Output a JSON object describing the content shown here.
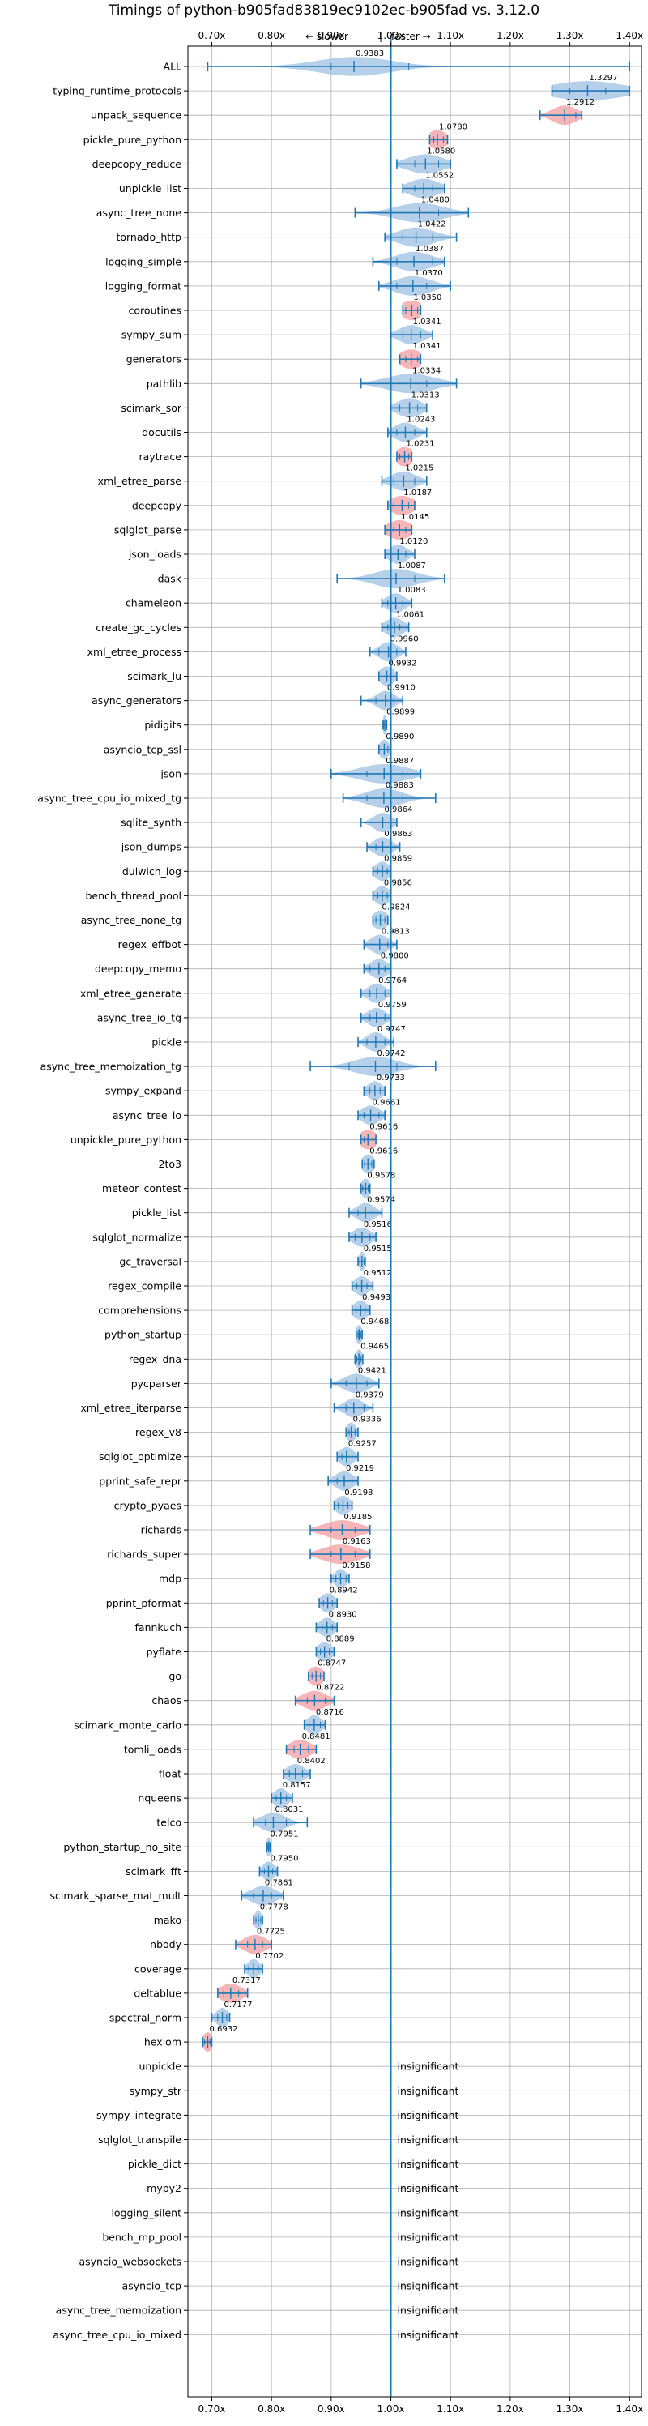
{
  "chart_data": {
    "type": "violin",
    "title": "Timings of python-b905fad83819ec9102ec-b905fad vs. 3.12.0",
    "subtitle_left": "← slower",
    "subtitle_sep": "|",
    "subtitle_right": "faster →",
    "xlabel": "",
    "ylabel": "",
    "xlim": [
      0.66,
      1.42
    ],
    "xticks": [
      0.7,
      0.8,
      0.9,
      1.0,
      1.1,
      1.2,
      1.3,
      1.4
    ],
    "xtick_labels": [
      "0.70x",
      "0.80x",
      "0.90x",
      "1.00x",
      "1.10x",
      "1.20x",
      "1.30x",
      "1.40x"
    ],
    "grid": true,
    "reference_line": 1.0,
    "insignificant_label": "insignificant",
    "colors": {
      "normal": "#aac8e6",
      "highlight": "#f5a9ad",
      "line": "#1f77b4"
    },
    "benchmarks": [
      {
        "name": "ALL",
        "mean": 0.9383,
        "min": 0.6932,
        "max": 1.3999,
        "q1": 0.9,
        "q3": 1.03,
        "spread": 0.06,
        "highlight": false
      },
      {
        "name": "typing_runtime_protocols",
        "mean": 1.3297,
        "min": 1.27,
        "max": 1.4,
        "q1": 1.3,
        "q3": 1.36,
        "spread": 0.06,
        "highlight": false
      },
      {
        "name": "unpack_sequence",
        "mean": 1.2912,
        "min": 1.25,
        "max": 1.32,
        "q1": 1.27,
        "q3": 1.31,
        "spread": 0.02,
        "highlight": true
      },
      {
        "name": "pickle_pure_python",
        "mean": 1.078,
        "min": 1.065,
        "max": 1.095,
        "q1": 1.072,
        "q3": 1.088,
        "spread": 0.015,
        "highlight": true
      },
      {
        "name": "deepcopy_reduce",
        "mean": 1.058,
        "min": 1.01,
        "max": 1.1,
        "q1": 1.04,
        "q3": 1.08,
        "spread": 0.03,
        "highlight": false
      },
      {
        "name": "unpickle_list",
        "mean": 1.0552,
        "min": 1.02,
        "max": 1.09,
        "q1": 1.04,
        "q3": 1.07,
        "spread": 0.025,
        "highlight": false
      },
      {
        "name": "async_tree_none",
        "mean": 1.048,
        "min": 0.94,
        "max": 1.13,
        "q1": 1.0,
        "q3": 1.08,
        "spread": 0.04,
        "highlight": false
      },
      {
        "name": "tornado_http",
        "mean": 1.0422,
        "min": 0.99,
        "max": 1.11,
        "q1": 1.02,
        "q3": 1.07,
        "spread": 0.03,
        "highlight": false
      },
      {
        "name": "logging_simple",
        "mean": 1.0387,
        "min": 0.97,
        "max": 1.09,
        "q1": 1.01,
        "q3": 1.07,
        "spread": 0.03,
        "highlight": false
      },
      {
        "name": "logging_format",
        "mean": 1.037,
        "min": 0.98,
        "max": 1.1,
        "q1": 1.01,
        "q3": 1.06,
        "spread": 0.03,
        "highlight": false
      },
      {
        "name": "coroutines",
        "mean": 1.035,
        "min": 1.02,
        "max": 1.05,
        "q1": 1.025,
        "q3": 1.045,
        "spread": 0.02,
        "highlight": true
      },
      {
        "name": "sympy_sum",
        "mean": 1.0341,
        "min": 1.0,
        "max": 1.07,
        "q1": 1.02,
        "q3": 1.05,
        "spread": 0.02,
        "highlight": false
      },
      {
        "name": "generators",
        "mean": 1.0341,
        "min": 1.015,
        "max": 1.05,
        "q1": 1.025,
        "q3": 1.045,
        "spread": 0.02,
        "highlight": true
      },
      {
        "name": "pathlib",
        "mean": 1.0334,
        "min": 0.95,
        "max": 1.11,
        "q1": 1.0,
        "q3": 1.06,
        "spread": 0.04,
        "highlight": false
      },
      {
        "name": "scimark_sor",
        "mean": 1.0313,
        "min": 1.0,
        "max": 1.06,
        "q1": 1.015,
        "q3": 1.045,
        "spread": 0.02,
        "highlight": false
      },
      {
        "name": "docutils",
        "mean": 1.0243,
        "min": 0.995,
        "max": 1.06,
        "q1": 1.01,
        "q3": 1.04,
        "spread": 0.018,
        "highlight": false
      },
      {
        "name": "raytrace",
        "mean": 1.0231,
        "min": 1.01,
        "max": 1.035,
        "q1": 1.015,
        "q3": 1.03,
        "spread": 0.015,
        "highlight": true
      },
      {
        "name": "xml_etree_parse",
        "mean": 1.0215,
        "min": 0.985,
        "max": 1.06,
        "q1": 1.005,
        "q3": 1.04,
        "spread": 0.02,
        "highlight": false
      },
      {
        "name": "deepcopy",
        "mean": 1.0187,
        "min": 0.995,
        "max": 1.04,
        "q1": 1.005,
        "q3": 1.03,
        "spread": 0.02,
        "highlight": true
      },
      {
        "name": "sqlglot_parse",
        "mean": 1.0145,
        "min": 0.99,
        "max": 1.035,
        "q1": 1.005,
        "q3": 1.025,
        "spread": 0.02,
        "highlight": true
      },
      {
        "name": "json_loads",
        "mean": 1.012,
        "min": 0.99,
        "max": 1.04,
        "q1": 1.0,
        "q3": 1.025,
        "spread": 0.015,
        "highlight": false
      },
      {
        "name": "dask",
        "mean": 1.0087,
        "min": 0.91,
        "max": 1.09,
        "q1": 0.97,
        "q3": 1.04,
        "spread": 0.035,
        "highlight": false
      },
      {
        "name": "chameleon",
        "mean": 1.0083,
        "min": 0.985,
        "max": 1.035,
        "q1": 0.995,
        "q3": 1.02,
        "spread": 0.015,
        "highlight": false
      },
      {
        "name": "create_gc_cycles",
        "mean": 1.0061,
        "min": 0.985,
        "max": 1.03,
        "q1": 0.995,
        "q3": 1.015,
        "spread": 0.015,
        "highlight": false
      },
      {
        "name": "xml_etree_process",
        "mean": 0.996,
        "min": 0.965,
        "max": 1.025,
        "q1": 0.98,
        "q3": 1.01,
        "spread": 0.015,
        "highlight": false
      },
      {
        "name": "scimark_lu",
        "mean": 0.9932,
        "min": 0.98,
        "max": 1.01,
        "q1": 0.985,
        "q3": 1.0,
        "spread": 0.012,
        "highlight": false
      },
      {
        "name": "async_generators",
        "mean": 0.991,
        "min": 0.95,
        "max": 1.02,
        "q1": 0.975,
        "q3": 1.005,
        "spread": 0.015,
        "highlight": false
      },
      {
        "name": "pidigits",
        "mean": 0.9899,
        "min": 0.987,
        "max": 0.993,
        "q1": 0.988,
        "q3": 0.992,
        "spread": 0.004,
        "highlight": false
      },
      {
        "name": "asyncio_tcp_ssl",
        "mean": 0.989,
        "min": 0.98,
        "max": 1.0,
        "q1": 0.985,
        "q3": 0.995,
        "spread": 0.008,
        "highlight": false
      },
      {
        "name": "json",
        "mean": 0.9887,
        "min": 0.9,
        "max": 1.05,
        "q1": 0.96,
        "q3": 1.02,
        "spread": 0.04,
        "highlight": false
      },
      {
        "name": "async_tree_cpu_io_mixed_tg",
        "mean": 0.9883,
        "min": 0.92,
        "max": 1.075,
        "q1": 0.96,
        "q3": 1.02,
        "spread": 0.03,
        "highlight": false
      },
      {
        "name": "sqlite_synth",
        "mean": 0.9864,
        "min": 0.95,
        "max": 1.01,
        "q1": 0.97,
        "q3": 1.0,
        "spread": 0.015,
        "highlight": false
      },
      {
        "name": "json_dumps",
        "mean": 0.9863,
        "min": 0.96,
        "max": 1.015,
        "q1": 0.975,
        "q3": 1.0,
        "spread": 0.015,
        "highlight": false
      },
      {
        "name": "dulwich_log",
        "mean": 0.9859,
        "min": 0.97,
        "max": 1.0,
        "q1": 0.978,
        "q3": 0.994,
        "spread": 0.012,
        "highlight": false
      },
      {
        "name": "bench_thread_pool",
        "mean": 0.9856,
        "min": 0.97,
        "max": 1.0,
        "q1": 0.978,
        "q3": 0.994,
        "spread": 0.012,
        "highlight": false
      },
      {
        "name": "async_tree_none_tg",
        "mean": 0.9824,
        "min": 0.97,
        "max": 0.995,
        "q1": 0.975,
        "q3": 0.99,
        "spread": 0.012,
        "highlight": false
      },
      {
        "name": "regex_effbot",
        "mean": 0.9813,
        "min": 0.955,
        "max": 1.01,
        "q1": 0.97,
        "q3": 0.995,
        "spread": 0.015,
        "highlight": false
      },
      {
        "name": "deepcopy_memo",
        "mean": 0.98,
        "min": 0.955,
        "max": 1.0,
        "q1": 0.965,
        "q3": 0.99,
        "spread": 0.015,
        "highlight": false
      },
      {
        "name": "xml_etree_generate",
        "mean": 0.9764,
        "min": 0.95,
        "max": 1.0,
        "q1": 0.965,
        "q3": 0.99,
        "spread": 0.015,
        "highlight": false
      },
      {
        "name": "async_tree_io_tg",
        "mean": 0.9759,
        "min": 0.95,
        "max": 1.0,
        "q1": 0.965,
        "q3": 0.99,
        "spread": 0.015,
        "highlight": false
      },
      {
        "name": "pickle",
        "mean": 0.9747,
        "min": 0.945,
        "max": 1.005,
        "q1": 0.96,
        "q3": 0.99,
        "spread": 0.015,
        "highlight": false
      },
      {
        "name": "async_tree_memoization_tg",
        "mean": 0.9742,
        "min": 0.865,
        "max": 1.075,
        "q1": 0.93,
        "q3": 1.01,
        "spread": 0.035,
        "highlight": false
      },
      {
        "name": "sympy_expand",
        "mean": 0.9733,
        "min": 0.955,
        "max": 0.99,
        "q1": 0.965,
        "q3": 0.982,
        "spread": 0.012,
        "highlight": false
      },
      {
        "name": "async_tree_io",
        "mean": 0.9661,
        "min": 0.945,
        "max": 0.99,
        "q1": 0.955,
        "q3": 0.98,
        "spread": 0.015,
        "highlight": false
      },
      {
        "name": "unpickle_pure_python",
        "mean": 0.9616,
        "min": 0.95,
        "max": 0.975,
        "q1": 0.955,
        "q3": 0.97,
        "spread": 0.015,
        "highlight": true
      },
      {
        "name": "2to3",
        "mean": 0.9616,
        "min": 0.952,
        "max": 0.972,
        "q1": 0.956,
        "q3": 0.968,
        "spread": 0.01,
        "highlight": false
      },
      {
        "name": "meteor_contest",
        "mean": 0.9578,
        "min": 0.95,
        "max": 0.965,
        "q1": 0.953,
        "q3": 0.962,
        "spread": 0.008,
        "highlight": false
      },
      {
        "name": "pickle_list",
        "mean": 0.9574,
        "min": 0.93,
        "max": 0.985,
        "q1": 0.945,
        "q3": 0.97,
        "spread": 0.015,
        "highlight": false
      },
      {
        "name": "sqlglot_normalize",
        "mean": 0.9516,
        "min": 0.93,
        "max": 0.975,
        "q1": 0.94,
        "q3": 0.965,
        "spread": 0.015,
        "highlight": false
      },
      {
        "name": "gc_traversal",
        "mean": 0.9515,
        "min": 0.945,
        "max": 0.957,
        "q1": 0.948,
        "q3": 0.955,
        "spread": 0.005,
        "highlight": false
      },
      {
        "name": "regex_compile",
        "mean": 0.9512,
        "min": 0.935,
        "max": 0.97,
        "q1": 0.943,
        "q3": 0.96,
        "spread": 0.012,
        "highlight": false
      },
      {
        "name": "comprehensions",
        "mean": 0.9493,
        "min": 0.935,
        "max": 0.965,
        "q1": 0.942,
        "q3": 0.957,
        "spread": 0.012,
        "highlight": false
      },
      {
        "name": "python_startup",
        "mean": 0.9468,
        "min": 0.942,
        "max": 0.952,
        "q1": 0.945,
        "q3": 0.95,
        "spread": 0.005,
        "highlight": false
      },
      {
        "name": "regex_dna",
        "mean": 0.9465,
        "min": 0.94,
        "max": 0.953,
        "q1": 0.943,
        "q3": 0.95,
        "spread": 0.006,
        "highlight": false
      },
      {
        "name": "pycparser",
        "mean": 0.9421,
        "min": 0.9,
        "max": 0.98,
        "q1": 0.925,
        "q3": 0.96,
        "spread": 0.02,
        "highlight": false
      },
      {
        "name": "xml_etree_iterparse",
        "mean": 0.9379,
        "min": 0.905,
        "max": 0.97,
        "q1": 0.925,
        "q3": 0.955,
        "spread": 0.015,
        "highlight": false
      },
      {
        "name": "regex_v8",
        "mean": 0.9336,
        "min": 0.925,
        "max": 0.945,
        "q1": 0.93,
        "q3": 0.94,
        "spread": 0.008,
        "highlight": false
      },
      {
        "name": "sqlglot_optimize",
        "mean": 0.9257,
        "min": 0.91,
        "max": 0.945,
        "q1": 0.918,
        "q3": 0.935,
        "spread": 0.012,
        "highlight": false
      },
      {
        "name": "pprint_safe_repr",
        "mean": 0.9219,
        "min": 0.895,
        "max": 0.945,
        "q1": 0.91,
        "q3": 0.935,
        "spread": 0.015,
        "highlight": false
      },
      {
        "name": "crypto_pyaes",
        "mean": 0.9198,
        "min": 0.905,
        "max": 0.935,
        "q1": 0.912,
        "q3": 0.928,
        "spread": 0.012,
        "highlight": false
      },
      {
        "name": "richards",
        "mean": 0.9185,
        "min": 0.865,
        "max": 0.965,
        "q1": 0.9,
        "q3": 0.94,
        "spread": 0.03,
        "highlight": true
      },
      {
        "name": "richards_super",
        "mean": 0.9163,
        "min": 0.865,
        "max": 0.965,
        "q1": 0.9,
        "q3": 0.94,
        "spread": 0.03,
        "highlight": true
      },
      {
        "name": "mdp",
        "mean": 0.9158,
        "min": 0.9,
        "max": 0.93,
        "q1": 0.908,
        "q3": 0.925,
        "spread": 0.01,
        "highlight": false
      },
      {
        "name": "pprint_pformat",
        "mean": 0.8942,
        "min": 0.88,
        "max": 0.91,
        "q1": 0.887,
        "q3": 0.902,
        "spread": 0.012,
        "highlight": false
      },
      {
        "name": "fannkuch",
        "mean": 0.893,
        "min": 0.875,
        "max": 0.91,
        "q1": 0.885,
        "q3": 0.902,
        "spread": 0.012,
        "highlight": false
      },
      {
        "name": "pyflate",
        "mean": 0.8889,
        "min": 0.875,
        "max": 0.905,
        "q1": 0.882,
        "q3": 0.897,
        "spread": 0.012,
        "highlight": false
      },
      {
        "name": "go",
        "mean": 0.8747,
        "min": 0.862,
        "max": 0.888,
        "q1": 0.868,
        "q3": 0.882,
        "spread": 0.012,
        "highlight": true
      },
      {
        "name": "chaos",
        "mean": 0.8722,
        "min": 0.84,
        "max": 0.905,
        "q1": 0.86,
        "q3": 0.89,
        "spread": 0.02,
        "highlight": true
      },
      {
        "name": "scimark_monte_carlo",
        "mean": 0.8716,
        "min": 0.855,
        "max": 0.89,
        "q1": 0.863,
        "q3": 0.882,
        "spread": 0.012,
        "highlight": false
      },
      {
        "name": "tomli_loads",
        "mean": 0.8481,
        "min": 0.825,
        "max": 0.875,
        "q1": 0.838,
        "q3": 0.862,
        "spread": 0.018,
        "highlight": true
      },
      {
        "name": "float",
        "mean": 0.8402,
        "min": 0.82,
        "max": 0.865,
        "q1": 0.83,
        "q3": 0.852,
        "spread": 0.015,
        "highlight": false
      },
      {
        "name": "nqueens",
        "mean": 0.8157,
        "min": 0.8,
        "max": 0.835,
        "q1": 0.808,
        "q3": 0.825,
        "spread": 0.012,
        "highlight": false
      },
      {
        "name": "telco",
        "mean": 0.8031,
        "min": 0.77,
        "max": 0.86,
        "q1": 0.79,
        "q3": 0.825,
        "spread": 0.02,
        "highlight": false
      },
      {
        "name": "python_startup_no_site",
        "mean": 0.7951,
        "min": 0.792,
        "max": 0.798,
        "q1": 0.794,
        "q3": 0.797,
        "spread": 0.004,
        "highlight": false
      },
      {
        "name": "scimark_fft",
        "mean": 0.795,
        "min": 0.78,
        "max": 0.81,
        "q1": 0.788,
        "q3": 0.802,
        "spread": 0.01,
        "highlight": false
      },
      {
        "name": "scimark_sparse_mat_mult",
        "mean": 0.7861,
        "min": 0.75,
        "max": 0.82,
        "q1": 0.77,
        "q3": 0.8,
        "spread": 0.02,
        "highlight": false
      },
      {
        "name": "mako",
        "mean": 0.7778,
        "min": 0.77,
        "max": 0.785,
        "q1": 0.774,
        "q3": 0.782,
        "spread": 0.006,
        "highlight": false
      },
      {
        "name": "nbody",
        "mean": 0.7725,
        "min": 0.74,
        "max": 0.8,
        "q1": 0.76,
        "q3": 0.785,
        "spread": 0.018,
        "highlight": true
      },
      {
        "name": "coverage",
        "mean": 0.7702,
        "min": 0.755,
        "max": 0.785,
        "q1": 0.762,
        "q3": 0.778,
        "spread": 0.01,
        "highlight": false
      },
      {
        "name": "deltablue",
        "mean": 0.7317,
        "min": 0.71,
        "max": 0.76,
        "q1": 0.72,
        "q3": 0.745,
        "spread": 0.018,
        "highlight": true
      },
      {
        "name": "spectral_norm",
        "mean": 0.7177,
        "min": 0.7,
        "max": 0.73,
        "q1": 0.71,
        "q3": 0.725,
        "spread": 0.01,
        "highlight": false
      },
      {
        "name": "hexiom",
        "mean": 0.6932,
        "min": 0.685,
        "max": 0.7,
        "q1": 0.688,
        "q3": 0.697,
        "spread": 0.008,
        "highlight": true
      },
      {
        "name": "unpickle",
        "insignificant": true
      },
      {
        "name": "sympy_str",
        "insignificant": true
      },
      {
        "name": "sympy_integrate",
        "insignificant": true
      },
      {
        "name": "sqlglot_transpile",
        "insignificant": true
      },
      {
        "name": "pickle_dict",
        "insignificant": true
      },
      {
        "name": "mypy2",
        "insignificant": true
      },
      {
        "name": "logging_silent",
        "insignificant": true
      },
      {
        "name": "bench_mp_pool",
        "insignificant": true
      },
      {
        "name": "asyncio_websockets",
        "insignificant": true
      },
      {
        "name": "asyncio_tcp",
        "insignificant": true
      },
      {
        "name": "async_tree_memoization",
        "insignificant": true
      },
      {
        "name": "async_tree_cpu_io_mixed",
        "insignificant": true
      }
    ]
  }
}
